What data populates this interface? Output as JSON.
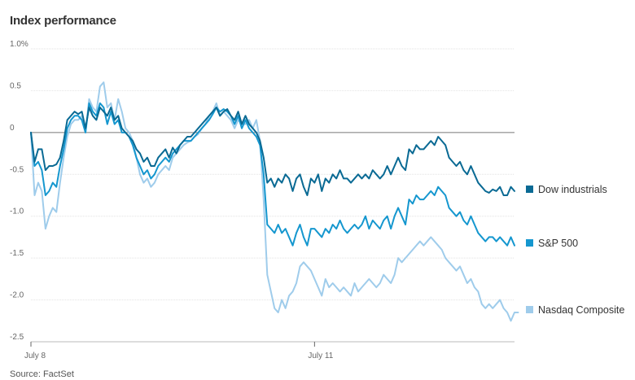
{
  "chart_data": {
    "type": "line",
    "title": "Index performance",
    "source": "Source: FactSet",
    "ylim": [
      -2.5,
      1.0
    ],
    "y_ticks": [
      {
        "value": 1.0,
        "label": "1.0%"
      },
      {
        "value": 0.5,
        "label": "0.5"
      },
      {
        "value": 0,
        "label": "0"
      },
      {
        "value": -0.5,
        "label": "-0.5"
      },
      {
        "value": -1.0,
        "label": "-1.0"
      },
      {
        "value": -1.5,
        "label": "-1.5"
      },
      {
        "value": -2.0,
        "label": "-2.0"
      },
      {
        "value": -2.5,
        "label": "-2.5"
      }
    ],
    "x_ticks": [
      {
        "label": "July 8",
        "index": 0
      },
      {
        "label": "July 11",
        "index": 78
      }
    ],
    "grid": true,
    "legend_position": "right",
    "series": [
      {
        "name": "Dow industrials",
        "color": "#0a6a94",
        "values": [
          0.0,
          -0.35,
          -0.2,
          -0.2,
          -0.45,
          -0.4,
          -0.4,
          -0.38,
          -0.3,
          -0.1,
          0.15,
          0.2,
          0.25,
          0.22,
          0.25,
          0.05,
          0.3,
          0.2,
          0.15,
          0.3,
          0.25,
          0.2,
          0.3,
          0.15,
          0.2,
          0.05,
          0.0,
          -0.05,
          -0.1,
          -0.2,
          -0.25,
          -0.35,
          -0.3,
          -0.4,
          -0.4,
          -0.3,
          -0.25,
          -0.2,
          -0.3,
          -0.18,
          -0.25,
          -0.15,
          -0.1,
          -0.05,
          -0.05,
          0.0,
          0.05,
          0.1,
          0.15,
          0.2,
          0.25,
          0.3,
          0.2,
          0.25,
          0.28,
          0.2,
          0.15,
          0.25,
          0.1,
          0.2,
          0.1,
          0.05,
          0.0,
          -0.1,
          -0.3,
          -0.6,
          -0.55,
          -0.65,
          -0.55,
          -0.6,
          -0.5,
          -0.55,
          -0.7,
          -0.55,
          -0.5,
          -0.65,
          -0.75,
          -0.55,
          -0.6,
          -0.5,
          -0.7,
          -0.55,
          -0.6,
          -0.5,
          -0.55,
          -0.45,
          -0.55,
          -0.55,
          -0.6,
          -0.55,
          -0.5,
          -0.55,
          -0.5,
          -0.55,
          -0.45,
          -0.5,
          -0.55,
          -0.5,
          -0.4,
          -0.5,
          -0.4,
          -0.3,
          -0.4,
          -0.45,
          -0.2,
          -0.25,
          -0.15,
          -0.2,
          -0.2,
          -0.15,
          -0.1,
          -0.15,
          -0.05,
          -0.1,
          -0.15,
          -0.3,
          -0.35,
          -0.4,
          -0.35,
          -0.45,
          -0.5,
          -0.4,
          -0.5,
          -0.6,
          -0.65,
          -0.7,
          -0.72,
          -0.68,
          -0.7,
          -0.65,
          -0.75,
          -0.75,
          -0.65,
          -0.7
        ]
      },
      {
        "name": "S&P 500",
        "color": "#1597cf",
        "values": [
          0.0,
          -0.4,
          -0.35,
          -0.45,
          -0.75,
          -0.7,
          -0.6,
          -0.65,
          -0.4,
          -0.2,
          0.05,
          0.15,
          0.2,
          0.2,
          0.15,
          0.0,
          0.35,
          0.25,
          0.2,
          0.35,
          0.3,
          0.1,
          0.25,
          0.1,
          0.15,
          0.0,
          0.0,
          -0.05,
          -0.15,
          -0.3,
          -0.4,
          -0.5,
          -0.45,
          -0.55,
          -0.5,
          -0.4,
          -0.35,
          -0.3,
          -0.35,
          -0.25,
          -0.2,
          -0.15,
          -0.1,
          -0.1,
          -0.1,
          -0.05,
          0.0,
          0.05,
          0.1,
          0.15,
          0.22,
          0.3,
          0.25,
          0.28,
          0.25,
          0.2,
          0.1,
          0.2,
          0.05,
          0.15,
          0.05,
          0.0,
          -0.05,
          -0.15,
          -0.5,
          -1.1,
          -1.15,
          -1.2,
          -1.1,
          -1.2,
          -1.15,
          -1.25,
          -1.35,
          -1.2,
          -1.1,
          -1.25,
          -1.35,
          -1.15,
          -1.15,
          -1.2,
          -1.25,
          -1.15,
          -1.2,
          -1.1,
          -1.15,
          -1.05,
          -1.15,
          -1.2,
          -1.15,
          -1.1,
          -1.15,
          -1.1,
          -1.0,
          -1.15,
          -1.05,
          -1.1,
          -1.15,
          -1.05,
          -1.0,
          -1.15,
          -1.0,
          -0.9,
          -1.0,
          -1.1,
          -0.8,
          -0.85,
          -0.75,
          -0.8,
          -0.8,
          -0.75,
          -0.7,
          -0.75,
          -0.65,
          -0.7,
          -0.75,
          -0.9,
          -0.95,
          -1.0,
          -0.95,
          -1.05,
          -1.1,
          -1.0,
          -1.1,
          -1.2,
          -1.25,
          -1.3,
          -1.25,
          -1.25,
          -1.3,
          -1.25,
          -1.3,
          -1.35,
          -1.25,
          -1.35
        ]
      },
      {
        "name": "Nasdaq Composite",
        "color": "#9fcceb",
        "values": [
          0.0,
          -0.75,
          -0.6,
          -0.7,
          -1.15,
          -1.0,
          -0.9,
          -0.95,
          -0.6,
          -0.3,
          -0.05,
          0.1,
          0.15,
          0.15,
          0.2,
          0.0,
          0.4,
          0.3,
          0.25,
          0.55,
          0.6,
          0.3,
          0.35,
          0.15,
          0.4,
          0.25,
          0.05,
          0.0,
          -0.1,
          -0.3,
          -0.5,
          -0.6,
          -0.55,
          -0.65,
          -0.6,
          -0.5,
          -0.45,
          -0.4,
          -0.45,
          -0.3,
          -0.25,
          -0.2,
          -0.15,
          -0.12,
          -0.1,
          -0.05,
          -0.02,
          0.05,
          0.1,
          0.2,
          0.25,
          0.35,
          0.2,
          0.25,
          0.2,
          0.15,
          0.05,
          0.15,
          0.1,
          0.1,
          0.15,
          0.05,
          0.15,
          -0.1,
          -0.8,
          -1.7,
          -1.9,
          -2.1,
          -2.15,
          -2.0,
          -2.1,
          -1.95,
          -1.9,
          -1.8,
          -1.6,
          -1.55,
          -1.6,
          -1.65,
          -1.75,
          -1.85,
          -1.95,
          -1.75,
          -1.85,
          -1.8,
          -1.85,
          -1.9,
          -1.85,
          -1.9,
          -1.95,
          -1.8,
          -1.9,
          -1.85,
          -1.8,
          -1.75,
          -1.8,
          -1.85,
          -1.8,
          -1.7,
          -1.75,
          -1.8,
          -1.7,
          -1.5,
          -1.55,
          -1.5,
          -1.45,
          -1.4,
          -1.35,
          -1.3,
          -1.35,
          -1.3,
          -1.25,
          -1.3,
          -1.35,
          -1.4,
          -1.5,
          -1.55,
          -1.6,
          -1.65,
          -1.6,
          -1.7,
          -1.8,
          -1.75,
          -1.85,
          -1.9,
          -2.05,
          -2.1,
          -2.05,
          -2.1,
          -2.05,
          -2.0,
          -2.1,
          -2.15,
          -2.25,
          -2.15,
          -2.15
        ]
      }
    ]
  }
}
